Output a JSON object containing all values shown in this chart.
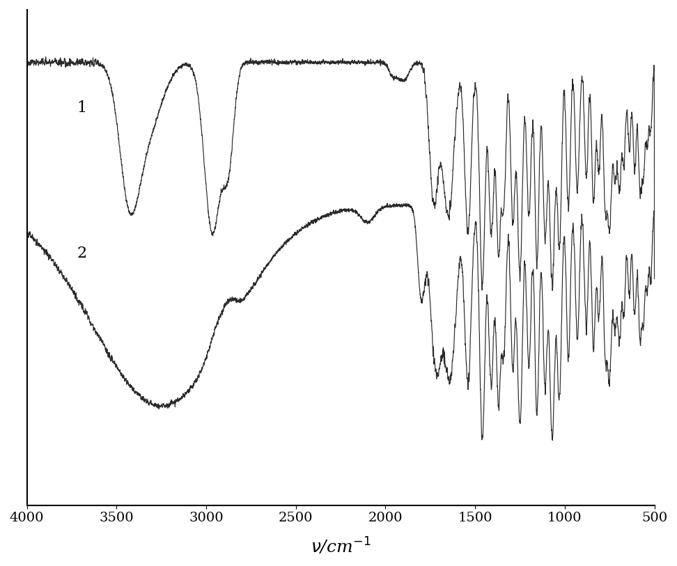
{
  "xlim": [
    4000,
    500
  ],
  "xticks": [
    4000,
    3500,
    3000,
    2500,
    2000,
    1500,
    1000,
    500
  ],
  "background_color": "#ffffff",
  "line_color": "#2a2a2a",
  "label1": "1",
  "label2": "2",
  "label_fontsize": 16,
  "xlabel": "$\\nu$/cm$^{-1}$"
}
